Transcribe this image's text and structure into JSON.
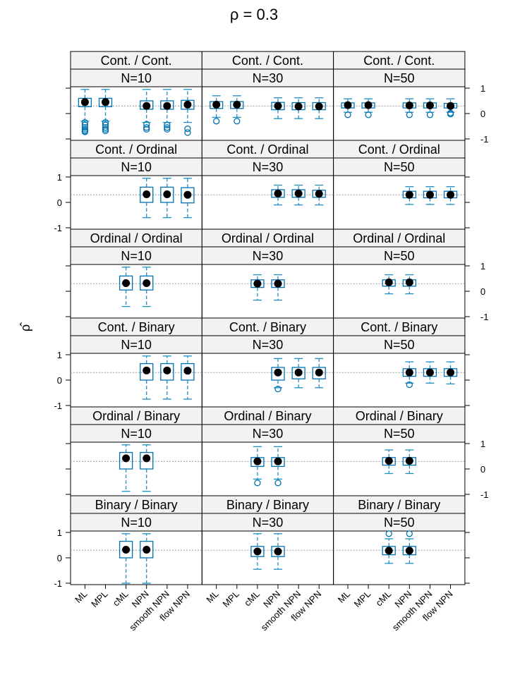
{
  "chart_data": {
    "type": "boxplot",
    "title": "ρ = 0.3",
    "ylabel": "ρ̂",
    "reference_value": 0.3,
    "ylim": [
      -1,
      1
    ],
    "y_ticks": [
      -1,
      0,
      1
    ],
    "methods": [
      "ML",
      "MPL",
      "cML",
      "NPN",
      "smooth NPN",
      "flow NPN"
    ],
    "rows": [
      "Cont. / Cont.",
      "Cont. / Ordinal",
      "Ordinal / Ordinal",
      "Cont. / Binary",
      "Ordinal / Binary",
      "Binary / Binary"
    ],
    "columns": [
      "N=10",
      "N=30",
      "N=50"
    ],
    "colors": {
      "box": "#0072b2",
      "whisker": "#1f8fc4",
      "median": "#000000",
      "strip": "#f2f2f2",
      "reference": "#9a9a9a"
    },
    "panels": [
      [
        {
          "boxes": [
            {
              "method": "ML",
              "median": 0.45,
              "q1": 0.27,
              "q3": 0.6,
              "wlo": -0.3,
              "whi": 0.95,
              "outliers": [
                -0.35,
                -0.45,
                -0.55,
                -0.62,
                -0.68,
                -0.72
              ]
            },
            {
              "method": "MPL",
              "median": 0.45,
              "q1": 0.27,
              "q3": 0.6,
              "wlo": -0.3,
              "whi": 0.95,
              "outliers": [
                -0.35,
                -0.45,
                -0.55,
                -0.62,
                -0.68
              ]
            },
            {
              "method": "NPN",
              "median": 0.3,
              "q1": 0.17,
              "q3": 0.5,
              "wlo": -0.35,
              "whi": 0.95,
              "outliers": [
                -0.42,
                -0.55,
                -0.62
              ]
            },
            {
              "method": "smooth NPN",
              "median": 0.3,
              "q1": 0.17,
              "q3": 0.5,
              "wlo": -0.35,
              "whi": 0.95,
              "outliers": [
                -0.45,
                -0.55,
                -0.62
              ]
            },
            {
              "method": "flow NPN",
              "median": 0.35,
              "q1": 0.17,
              "q3": 0.52,
              "wlo": -0.35,
              "whi": 0.95,
              "outliers": [
                -0.6,
                -0.75
              ]
            }
          ]
        },
        {
          "boxes": [
            {
              "method": "ML",
              "median": 0.35,
              "q1": 0.2,
              "q3": 0.47,
              "wlo": -0.15,
              "whi": 0.7,
              "outliers": [
                -0.3
              ]
            },
            {
              "method": "MPL",
              "median": 0.35,
              "q1": 0.2,
              "q3": 0.47,
              "wlo": -0.15,
              "whi": 0.7,
              "outliers": [
                -0.3
              ]
            },
            {
              "method": "NPN",
              "median": 0.3,
              "q1": 0.15,
              "q3": 0.44,
              "wlo": -0.2,
              "whi": 0.62,
              "outliers": []
            },
            {
              "method": "smooth NPN",
              "median": 0.28,
              "q1": 0.15,
              "q3": 0.43,
              "wlo": -0.2,
              "whi": 0.62,
              "outliers": []
            },
            {
              "method": "flow NPN",
              "median": 0.28,
              "q1": 0.15,
              "q3": 0.43,
              "wlo": -0.2,
              "whi": 0.62,
              "outliers": []
            }
          ]
        },
        {
          "boxes": [
            {
              "method": "ML",
              "median": 0.33,
              "q1": 0.22,
              "q3": 0.42,
              "wlo": 0.05,
              "whi": 0.58,
              "outliers": [
                -0.05
              ]
            },
            {
              "method": "MPL",
              "median": 0.33,
              "q1": 0.22,
              "q3": 0.42,
              "wlo": 0.05,
              "whi": 0.58,
              "outliers": [
                -0.05
              ]
            },
            {
              "method": "NPN",
              "median": 0.32,
              "q1": 0.22,
              "q3": 0.42,
              "wlo": 0.05,
              "whi": 0.58,
              "outliers": [
                -0.05
              ]
            },
            {
              "method": "smooth NPN",
              "median": 0.32,
              "q1": 0.22,
              "q3": 0.42,
              "wlo": 0.05,
              "whi": 0.58,
              "outliers": [
                -0.05
              ]
            },
            {
              "method": "flow NPN",
              "median": 0.3,
              "q1": 0.22,
              "q3": 0.4,
              "wlo": 0.05,
              "whi": 0.58,
              "outliers": [
                0.02,
                -0.02
              ]
            }
          ]
        }
      ],
      [
        {
          "boxes": [
            {
              "method": "NPN",
              "median": 0.32,
              "q1": 0.0,
              "q3": 0.6,
              "wlo": -0.6,
              "whi": 0.95,
              "outliers": []
            },
            {
              "method": "smooth NPN",
              "median": 0.32,
              "q1": 0.0,
              "q3": 0.6,
              "wlo": -0.6,
              "whi": 0.95,
              "outliers": []
            },
            {
              "method": "flow NPN",
              "median": 0.3,
              "q1": -0.02,
              "q3": 0.58,
              "wlo": -0.6,
              "whi": 0.95,
              "outliers": []
            }
          ]
        },
        {
          "boxes": [
            {
              "method": "NPN",
              "median": 0.35,
              "q1": 0.2,
              "q3": 0.5,
              "wlo": -0.1,
              "whi": 0.68,
              "outliers": []
            },
            {
              "method": "smooth NPN",
              "median": 0.35,
              "q1": 0.2,
              "q3": 0.5,
              "wlo": -0.1,
              "whi": 0.68,
              "outliers": []
            },
            {
              "method": "flow NPN",
              "median": 0.34,
              "q1": 0.2,
              "q3": 0.48,
              "wlo": -0.1,
              "whi": 0.68,
              "outliers": []
            }
          ]
        },
        {
          "boxes": [
            {
              "method": "NPN",
              "median": 0.3,
              "q1": 0.18,
              "q3": 0.44,
              "wlo": -0.08,
              "whi": 0.62,
              "outliers": []
            },
            {
              "method": "smooth NPN",
              "median": 0.3,
              "q1": 0.18,
              "q3": 0.44,
              "wlo": -0.08,
              "whi": 0.62,
              "outliers": []
            },
            {
              "method": "flow NPN",
              "median": 0.3,
              "q1": 0.18,
              "q3": 0.44,
              "wlo": -0.08,
              "whi": 0.62,
              "outliers": []
            }
          ]
        }
      ],
      [
        {
          "boxes": [
            {
              "method": "cML",
              "median": 0.32,
              "q1": 0.05,
              "q3": 0.6,
              "wlo": -0.6,
              "whi": 0.95,
              "outliers": []
            },
            {
              "method": "NPN",
              "median": 0.32,
              "q1": 0.05,
              "q3": 0.6,
              "wlo": -0.6,
              "whi": 0.95,
              "outliers": []
            }
          ]
        },
        {
          "boxes": [
            {
              "method": "cML",
              "median": 0.3,
              "q1": 0.15,
              "q3": 0.45,
              "wlo": -0.35,
              "whi": 0.65,
              "outliers": []
            },
            {
              "method": "NPN",
              "median": 0.3,
              "q1": 0.15,
              "q3": 0.45,
              "wlo": -0.35,
              "whi": 0.65,
              "outliers": []
            }
          ]
        },
        {
          "boxes": [
            {
              "method": "cML",
              "median": 0.35,
              "q1": 0.2,
              "q3": 0.45,
              "wlo": -0.1,
              "whi": 0.65,
              "outliers": []
            },
            {
              "method": "NPN",
              "median": 0.35,
              "q1": 0.2,
              "q3": 0.45,
              "wlo": -0.1,
              "whi": 0.65,
              "outliers": []
            }
          ]
        }
      ],
      [
        {
          "boxes": [
            {
              "method": "NPN",
              "median": 0.38,
              "q1": 0.0,
              "q3": 0.65,
              "wlo": -0.75,
              "whi": 0.95,
              "outliers": []
            },
            {
              "method": "smooth NPN",
              "median": 0.38,
              "q1": 0.0,
              "q3": 0.65,
              "wlo": -0.75,
              "whi": 0.95,
              "outliers": []
            },
            {
              "method": "flow NPN",
              "median": 0.37,
              "q1": 0.0,
              "q3": 0.65,
              "wlo": -0.75,
              "whi": 0.95,
              "outliers": []
            }
          ]
        },
        {
          "boxes": [
            {
              "method": "NPN",
              "median": 0.3,
              "q1": 0.0,
              "q3": 0.5,
              "wlo": -0.3,
              "whi": 0.85,
              "outliers": [
                -0.35
              ]
            },
            {
              "method": "smooth NPN",
              "median": 0.3,
              "q1": 0.05,
              "q3": 0.5,
              "wlo": -0.3,
              "whi": 0.85,
              "outliers": []
            },
            {
              "method": "flow NPN",
              "median": 0.3,
              "q1": 0.05,
              "q3": 0.5,
              "wlo": -0.3,
              "whi": 0.85,
              "outliers": []
            }
          ]
        },
        {
          "boxes": [
            {
              "method": "NPN",
              "median": 0.3,
              "q1": 0.15,
              "q3": 0.45,
              "wlo": -0.12,
              "whi": 0.72,
              "outliers": [
                -0.18
              ]
            },
            {
              "method": "smooth NPN",
              "median": 0.3,
              "q1": 0.15,
              "q3": 0.45,
              "wlo": -0.12,
              "whi": 0.72,
              "outliers": []
            },
            {
              "method": "flow NPN",
              "median": 0.3,
              "q1": 0.15,
              "q3": 0.45,
              "wlo": -0.15,
              "whi": 0.72,
              "outliers": []
            }
          ]
        }
      ],
      [
        {
          "boxes": [
            {
              "method": "cML",
              "median": 0.42,
              "q1": 0.0,
              "q3": 0.65,
              "wlo": -0.88,
              "whi": 0.95,
              "outliers": []
            },
            {
              "method": "NPN",
              "median": 0.42,
              "q1": 0.0,
              "q3": 0.65,
              "wlo": -0.88,
              "whi": 0.95,
              "outliers": []
            }
          ]
        },
        {
          "boxes": [
            {
              "method": "cML",
              "median": 0.3,
              "q1": 0.1,
              "q3": 0.45,
              "wlo": -0.4,
              "whi": 0.88,
              "outliers": [
                -0.55
              ]
            },
            {
              "method": "NPN",
              "median": 0.3,
              "q1": 0.1,
              "q3": 0.45,
              "wlo": -0.4,
              "whi": 0.88,
              "outliers": [
                -0.55
              ]
            }
          ]
        },
        {
          "boxes": [
            {
              "method": "cML",
              "median": 0.32,
              "q1": 0.15,
              "q3": 0.45,
              "wlo": -0.18,
              "whi": 0.75,
              "outliers": []
            },
            {
              "method": "NPN",
              "median": 0.32,
              "q1": 0.15,
              "q3": 0.45,
              "wlo": -0.18,
              "whi": 0.75,
              "outliers": []
            }
          ]
        }
      ],
      [
        {
          "boxes": [
            {
              "method": "cML",
              "median": 0.32,
              "q1": 0.0,
              "q3": 0.65,
              "wlo": -1.0,
              "whi": 0.95,
              "outliers": []
            },
            {
              "method": "NPN",
              "median": 0.32,
              "q1": 0.0,
              "q3": 0.65,
              "wlo": -1.0,
              "whi": 0.95,
              "outliers": []
            }
          ]
        },
        {
          "boxes": [
            {
              "method": "cML",
              "median": 0.25,
              "q1": 0.05,
              "q3": 0.45,
              "wlo": -0.45,
              "whi": 0.95,
              "outliers": []
            },
            {
              "method": "NPN",
              "median": 0.25,
              "q1": 0.05,
              "q3": 0.45,
              "wlo": -0.45,
              "whi": 0.95,
              "outliers": []
            }
          ]
        },
        {
          "boxes": [
            {
              "method": "cML",
              "median": 0.28,
              "q1": 0.12,
              "q3": 0.45,
              "wlo": -0.22,
              "whi": 0.75,
              "outliers": [
                0.95
              ]
            },
            {
              "method": "NPN",
              "median": 0.28,
              "q1": 0.12,
              "q3": 0.45,
              "wlo": -0.22,
              "whi": 0.75,
              "outliers": [
                0.95
              ]
            }
          ]
        }
      ]
    ]
  }
}
